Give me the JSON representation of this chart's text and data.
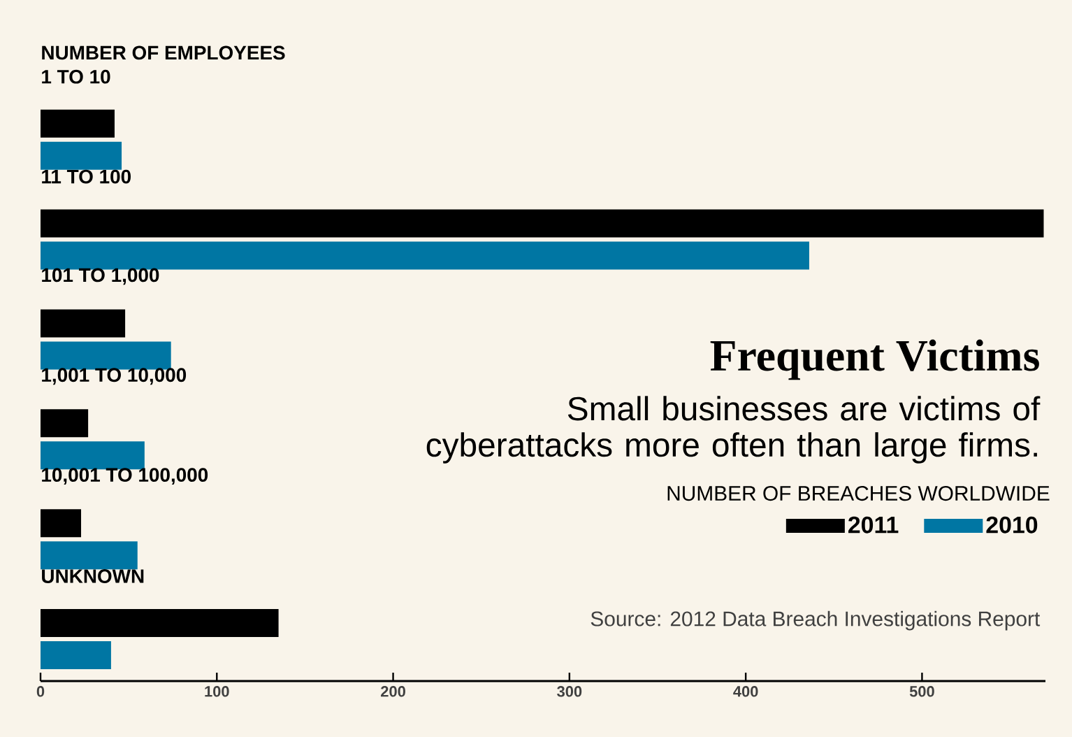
{
  "chart_data": {
    "type": "bar",
    "orientation": "horizontal",
    "title": "Frequent Victims",
    "subtitle": "Small businesses are victims of cyberattacks more often than large firms.",
    "ylabel": "NUMBER OF EMPLOYEES",
    "legend_title": "NUMBER OF BREACHES WORLDWIDE",
    "legend": "right",
    "categories": [
      "1 TO 10",
      "11 TO 100",
      "101 TO 1,000",
      "1,001 TO 10,000",
      "10,001 TO 100,000",
      "UNKNOWN"
    ],
    "series": [
      {
        "name": "2011",
        "color": "#000000",
        "values": [
          42,
          569,
          48,
          27,
          23,
          135
        ]
      },
      {
        "name": "2010",
        "color": "#0076a3",
        "values": [
          46,
          436,
          74,
          59,
          55,
          40
        ]
      }
    ],
    "xlim": [
      0,
      570
    ],
    "xticks": [
      0,
      100,
      200,
      300,
      400,
      500
    ],
    "grid": false,
    "annotations": [
      "Source: 2012 Data Breach Investigations Report"
    ]
  }
}
